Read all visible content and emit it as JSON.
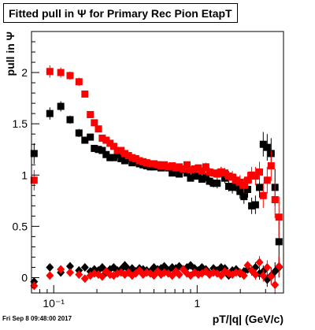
{
  "title": "Fitted pull in Ψ  for Primary Rec Pion EtapT",
  "date_stamp": "Fri Sep  8 09:48:00 2017",
  "colors": {
    "series_black": "#000000",
    "series_red": "#ff0000",
    "frame": "#000000"
  },
  "chart_data": {
    "type": "scatter",
    "title": "Fitted pull in Ψ  for Primary Rec Pion EtapT",
    "xlabel": "pT/|q| (GeV/c)",
    "ylabel": "pull in Ψ",
    "xscale": "log",
    "xlim": [
      0.07,
      4.0
    ],
    "ylim": [
      -0.15,
      2.4
    ],
    "x_tick_labels": [
      {
        "value": 0.1,
        "label": "10⁻¹"
      },
      {
        "value": 1,
        "label": "1"
      }
    ],
    "y_tick_labels": [
      {
        "value": 0,
        "label": "0"
      },
      {
        "value": 0.5,
        "label": "0.5"
      },
      {
        "value": 1,
        "label": "1"
      },
      {
        "value": 1.5,
        "label": "1.5"
      },
      {
        "value": 2,
        "label": "2"
      }
    ],
    "grid": false,
    "legend": "none",
    "series": [
      {
        "color": "#000000",
        "marker": "square",
        "x": [
          0.073,
          0.094,
          0.112,
          0.13,
          0.15,
          0.165,
          0.18,
          0.192,
          0.205,
          0.218,
          0.232,
          0.247,
          0.262,
          0.278,
          0.295,
          0.313,
          0.332,
          0.352,
          0.373,
          0.396,
          0.42,
          0.445,
          0.472,
          0.5,
          0.53,
          0.56,
          0.59,
          0.63,
          0.67,
          0.71,
          0.75,
          0.8,
          0.85,
          0.9,
          0.96,
          1.02,
          1.08,
          1.15,
          1.22,
          1.3,
          1.38,
          1.47,
          1.56,
          1.66,
          1.76,
          1.87,
          1.99,
          2.12,
          2.25,
          2.4,
          2.55,
          2.72,
          2.89,
          3.08,
          3.28,
          3.49,
          3.72
        ],
        "y": [
          1.21,
          1.6,
          1.67,
          1.54,
          1.41,
          1.34,
          1.37,
          1.26,
          1.25,
          1.24,
          1.2,
          1.17,
          1.17,
          1.2,
          1.16,
          1.14,
          1.16,
          1.12,
          1.13,
          1.11,
          1.1,
          1.09,
          1.08,
          1.08,
          1.1,
          1.07,
          1.08,
          1.07,
          1.02,
          1.07,
          1.01,
          1.05,
          1.02,
          0.97,
          0.99,
          0.99,
          0.96,
          0.98,
          0.94,
          0.92,
          0.92,
          1.03,
          0.97,
          0.89,
          0.88,
          0.9,
          0.84,
          0.79,
          0.86,
          0.7,
          0.71,
          0.88,
          1.3,
          1.27,
          1.21,
          0.88,
          0.35
        ],
        "yerr": [
          0.1,
          0.06,
          0.05,
          0.04,
          0.04,
          0.03,
          0.03,
          0.03,
          0.03,
          0.03,
          0.02,
          0.02,
          0.02,
          0.02,
          0.02,
          0.02,
          0.02,
          0.02,
          0.02,
          0.02,
          0.02,
          0.02,
          0.02,
          0.02,
          0.02,
          0.02,
          0.02,
          0.02,
          0.02,
          0.02,
          0.02,
          0.03,
          0.03,
          0.03,
          0.03,
          0.03,
          0.03,
          0.04,
          0.04,
          0.04,
          0.05,
          0.05,
          0.05,
          0.05,
          0.06,
          0.06,
          0.07,
          0.07,
          0.08,
          0.08,
          0.09,
          0.1,
          0.12,
          0.13,
          0.15,
          0.18,
          0.2
        ]
      },
      {
        "color": "#ff0000",
        "marker": "square",
        "x": [
          0.073,
          0.094,
          0.112,
          0.13,
          0.15,
          0.165,
          0.18,
          0.192,
          0.205,
          0.218,
          0.232,
          0.247,
          0.262,
          0.278,
          0.295,
          0.313,
          0.332,
          0.352,
          0.373,
          0.396,
          0.42,
          0.445,
          0.472,
          0.5,
          0.53,
          0.56,
          0.59,
          0.63,
          0.67,
          0.71,
          0.75,
          0.8,
          0.85,
          0.9,
          0.96,
          1.02,
          1.08,
          1.15,
          1.22,
          1.3,
          1.38,
          1.47,
          1.56,
          1.66,
          1.76,
          1.87,
          1.99,
          2.12,
          2.25,
          2.4,
          2.55,
          2.72,
          2.89,
          3.08,
          3.28,
          3.49,
          3.72
        ],
        "y": [
          0.95,
          2.01,
          2.0,
          1.97,
          1.91,
          1.79,
          1.59,
          1.51,
          1.45,
          1.36,
          1.34,
          1.31,
          1.28,
          1.24,
          1.24,
          1.21,
          1.19,
          1.17,
          1.16,
          1.14,
          1.13,
          1.12,
          1.11,
          1.11,
          1.1,
          1.09,
          1.1,
          1.08,
          1.09,
          1.07,
          1.08,
          1.06,
          1.1,
          1.05,
          1.06,
          1.07,
          1.04,
          1.08,
          1.03,
          1.02,
          1.01,
          1.03,
          1.02,
          0.99,
          0.98,
          0.95,
          0.93,
          0.9,
          0.95,
          1.0,
          0.99,
          1.03,
          0.8,
          0.95,
          1.09,
          0.76,
          0.59
        ],
        "yerr": [
          0.1,
          0.06,
          0.05,
          0.04,
          0.04,
          0.03,
          0.03,
          0.03,
          0.03,
          0.03,
          0.02,
          0.02,
          0.02,
          0.02,
          0.02,
          0.02,
          0.02,
          0.02,
          0.02,
          0.02,
          0.02,
          0.02,
          0.02,
          0.02,
          0.02,
          0.02,
          0.02,
          0.02,
          0.02,
          0.02,
          0.02,
          0.03,
          0.03,
          0.03,
          0.03,
          0.03,
          0.03,
          0.04,
          0.04,
          0.04,
          0.05,
          0.05,
          0.05,
          0.05,
          0.06,
          0.06,
          0.07,
          0.07,
          0.08,
          0.08,
          0.09,
          0.1,
          0.12,
          0.13,
          0.15,
          0.18,
          0.2
        ]
      },
      {
        "color": "#000000",
        "marker": "diamond",
        "x": [
          0.073,
          0.094,
          0.112,
          0.13,
          0.15,
          0.165,
          0.18,
          0.192,
          0.205,
          0.218,
          0.232,
          0.247,
          0.262,
          0.278,
          0.295,
          0.313,
          0.332,
          0.352,
          0.373,
          0.396,
          0.42,
          0.445,
          0.472,
          0.5,
          0.53,
          0.56,
          0.59,
          0.63,
          0.67,
          0.71,
          0.75,
          0.8,
          0.85,
          0.9,
          0.96,
          1.02,
          1.08,
          1.15,
          1.22,
          1.3,
          1.38,
          1.47,
          1.56,
          1.66,
          1.76,
          1.87,
          1.99,
          2.12,
          2.25,
          2.4,
          2.55,
          2.72,
          2.89,
          3.08,
          3.28,
          3.49,
          3.72
        ],
        "y": [
          -0.04,
          0.1,
          0.05,
          0.11,
          0.07,
          0.1,
          0.06,
          0.08,
          0.07,
          0.1,
          0.05,
          0.08,
          0.1,
          0.07,
          0.08,
          0.12,
          0.08,
          0.09,
          0.06,
          0.09,
          0.08,
          0.07,
          0.06,
          0.1,
          0.08,
          0.09,
          0.11,
          0.07,
          0.1,
          0.09,
          0.11,
          0.08,
          0.1,
          0.12,
          0.09,
          0.07,
          0.1,
          0.08,
          0.04,
          0.09,
          0.07,
          0.1,
          0.09,
          0.02,
          0.07,
          0.08,
          0.04,
          0.06,
          0.08,
          0.07,
          0.1,
          0.04,
          0.06,
          -0.02,
          0.02,
          0.06,
          0.1
        ],
        "yerr": [
          0.04,
          0.03,
          0.02,
          0.02,
          0.02,
          0.02,
          0.02,
          0.02,
          0.02,
          0.02,
          0.01,
          0.01,
          0.01,
          0.01,
          0.01,
          0.01,
          0.01,
          0.01,
          0.01,
          0.01,
          0.01,
          0.01,
          0.01,
          0.01,
          0.01,
          0.01,
          0.01,
          0.01,
          0.01,
          0.01,
          0.01,
          0.02,
          0.02,
          0.02,
          0.02,
          0.02,
          0.02,
          0.02,
          0.02,
          0.02,
          0.03,
          0.03,
          0.03,
          0.03,
          0.03,
          0.03,
          0.04,
          0.04,
          0.04,
          0.05,
          0.05,
          0.06,
          0.06,
          0.07,
          0.08,
          0.09,
          0.1
        ]
      },
      {
        "color": "#ff0000",
        "marker": "diamond",
        "x": [
          0.073,
          0.094,
          0.112,
          0.13,
          0.15,
          0.165,
          0.18,
          0.192,
          0.205,
          0.218,
          0.232,
          0.247,
          0.262,
          0.278,
          0.295,
          0.313,
          0.332,
          0.352,
          0.373,
          0.396,
          0.42,
          0.445,
          0.472,
          0.5,
          0.53,
          0.56,
          0.59,
          0.63,
          0.67,
          0.71,
          0.75,
          0.8,
          0.85,
          0.9,
          0.96,
          1.02,
          1.08,
          1.15,
          1.22,
          1.3,
          1.38,
          1.47,
          1.56,
          1.66,
          1.76,
          1.87,
          1.99,
          2.12,
          2.25,
          2.4,
          2.55,
          2.72,
          2.89,
          3.08,
          3.28,
          3.49,
          3.72
        ],
        "y": [
          -0.08,
          0.02,
          0.08,
          0.05,
          0.03,
          -0.01,
          0.02,
          0.04,
          0.03,
          0.01,
          0.06,
          0.03,
          0.02,
          0.04,
          0.05,
          0.03,
          0.05,
          0.02,
          0.04,
          0.07,
          0.03,
          0.05,
          0.04,
          0.02,
          0.06,
          0.03,
          0.05,
          0.04,
          0.02,
          0.06,
          0.03,
          0.08,
          0.04,
          0.02,
          0.05,
          0.03,
          0.04,
          0.06,
          0.03,
          0.05,
          0.04,
          0.02,
          0.06,
          0.04,
          0.03,
          0.05,
          0.05,
          0.02,
          0.12,
          0.07,
          0.03,
          0.15,
          0.02,
          0.1,
          0.01,
          -0.07,
          0.11
        ],
        "yerr": [
          0.04,
          0.03,
          0.02,
          0.02,
          0.02,
          0.02,
          0.02,
          0.02,
          0.02,
          0.02,
          0.01,
          0.01,
          0.01,
          0.01,
          0.01,
          0.01,
          0.01,
          0.01,
          0.01,
          0.01,
          0.01,
          0.01,
          0.01,
          0.01,
          0.01,
          0.01,
          0.01,
          0.01,
          0.01,
          0.01,
          0.01,
          0.02,
          0.02,
          0.02,
          0.02,
          0.02,
          0.02,
          0.02,
          0.02,
          0.02,
          0.03,
          0.03,
          0.03,
          0.03,
          0.03,
          0.03,
          0.04,
          0.04,
          0.04,
          0.05,
          0.05,
          0.06,
          0.06,
          0.07,
          0.08,
          0.09,
          0.1
        ]
      }
    ]
  }
}
